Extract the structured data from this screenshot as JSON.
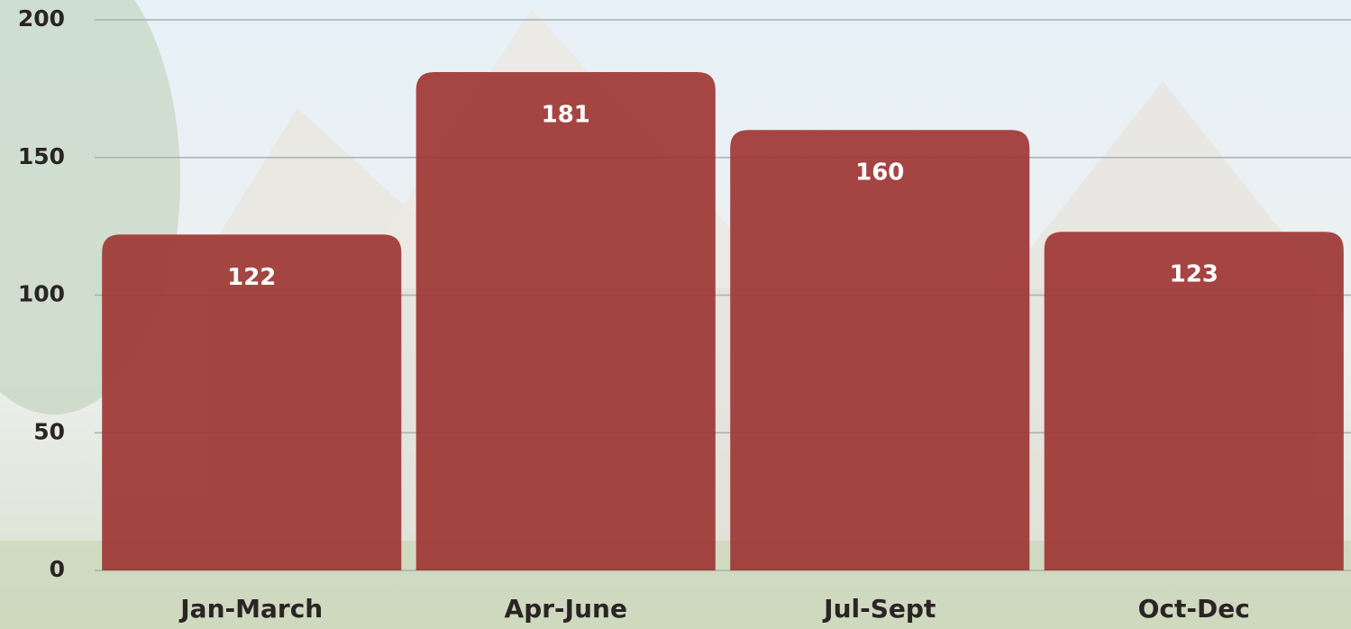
{
  "chart_data": {
    "type": "bar",
    "categories": [
      "Jan-March",
      "Apr-June",
      "Jul-Sept",
      "Oct-Dec"
    ],
    "values": [
      122,
      181,
      160,
      123
    ],
    "color": "#9e3634",
    "ylim": [
      0,
      200
    ],
    "yticks": [
      0,
      50,
      100,
      150,
      200
    ],
    "grid": true
  }
}
